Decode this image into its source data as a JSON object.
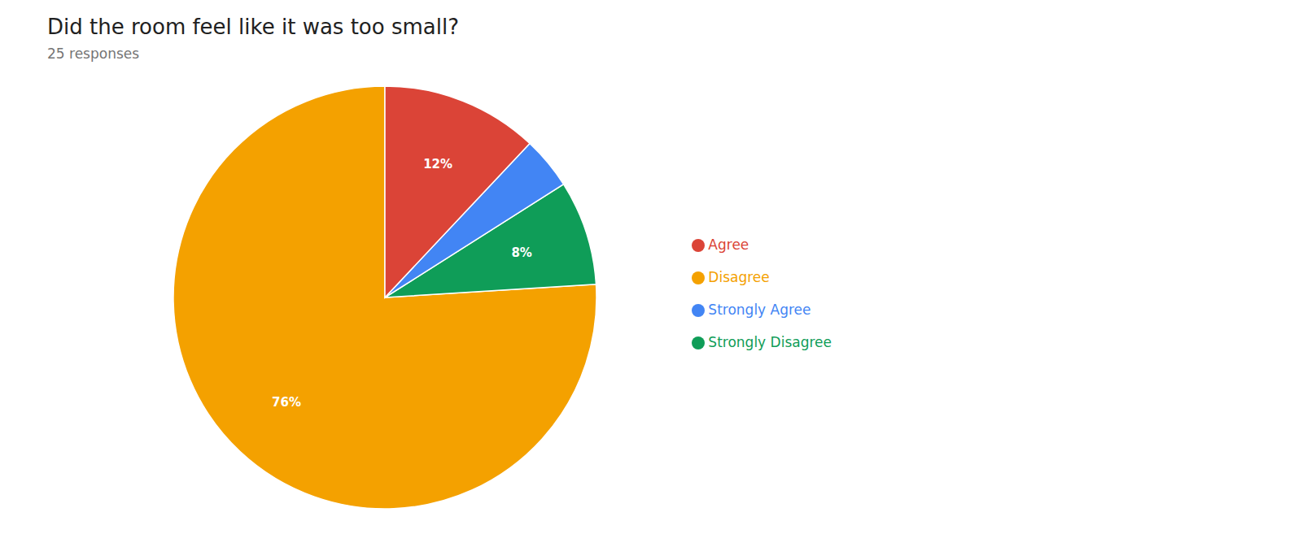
{
  "chart_data": {
    "type": "pie",
    "title": "Did the room feel like it was too small?",
    "subtitle": "25 responses",
    "categories": [
      "Disagree",
      "Strongly Disagree",
      "Strongly Agree",
      "Agree"
    ],
    "values": [
      76,
      8,
      4,
      12
    ],
    "value_labels": [
      "76%",
      "8%",
      null,
      "12%"
    ],
    "colors": [
      "#F4A100",
      "#0F9D58",
      "#4285F4",
      "#DB4437"
    ],
    "data_labels": true,
    "legend": "right"
  }
}
